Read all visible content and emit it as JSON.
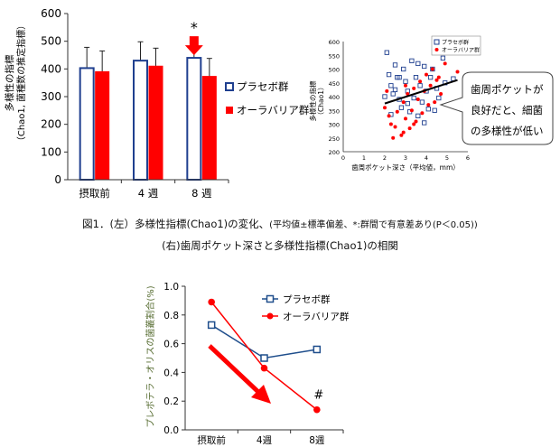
{
  "chart_data": [
    {
      "type": "bar",
      "title": "",
      "ylabel": "多様性の指標",
      "ylabel_sub": "（Chao1, 菌種数の推定指標）",
      "categories": [
        "摂取前",
        "4 週",
        "8 週"
      ],
      "yticks": [
        0,
        100,
        200,
        300,
        400,
        500,
        600
      ],
      "ylim": [
        0,
        600
      ],
      "series": [
        {
          "name": "プラセボ群",
          "values": [
            403,
            430,
            440
          ],
          "errors": [
            75,
            68,
            60
          ],
          "color": "#1f3f8f",
          "fill": "#ffffff"
        },
        {
          "name": "オーラバリア群",
          "values": [
            390,
            410,
            373
          ],
          "errors": [
            75,
            65,
            65
          ],
          "color": "#ff0000",
          "fill": "#ff0000"
        }
      ],
      "annotation": {
        "text": "*",
        "category_index": 2,
        "arrow": "down",
        "arrow_color": "#ff0000"
      }
    },
    {
      "type": "scatter",
      "xlabel": "歯周ポケット深さ（平均値，mm）",
      "ylabel": "多様性の指標",
      "ylabel_sub": "（Chao1）",
      "xlim": [
        0,
        6
      ],
      "ylim": [
        200,
        600
      ],
      "xticks": [
        0,
        1,
        2,
        3,
        4,
        5,
        6
      ],
      "yticks": [
        200,
        250,
        300,
        350,
        400,
        450,
        500,
        550,
        600
      ],
      "legend": [
        "プラセボ群",
        "オーラバリア群"
      ],
      "placebo_color": "#1f3f8f",
      "aura_color": "#ff0000",
      "placebo": [
        [
          2.1,
          560
        ],
        [
          2.2,
          480
        ],
        [
          2.3,
          440
        ],
        [
          2.4,
          410
        ],
        [
          2.5,
          515
        ],
        [
          2.6,
          470
        ],
        [
          2.7,
          390
        ],
        [
          2.8,
          360
        ],
        [
          2.9,
          500
        ],
        [
          3.0,
          455
        ],
        [
          3.1,
          420
        ],
        [
          3.2,
          345
        ],
        [
          3.3,
          530
        ],
        [
          3.4,
          395
        ],
        [
          3.5,
          470
        ],
        [
          3.6,
          330
        ],
        [
          3.7,
          440
        ],
        [
          3.8,
          380
        ],
        [
          3.9,
          510
        ],
        [
          4.0,
          420
        ],
        [
          4.1,
          355
        ],
        [
          4.2,
          470
        ],
        [
          4.3,
          500
        ],
        [
          4.5,
          430
        ],
        [
          4.6,
          395
        ],
        [
          4.8,
          540
        ],
        [
          2.0,
          400
        ],
        [
          2.3,
          335
        ],
        [
          2.7,
          470
        ],
        [
          3.1,
          375
        ],
        [
          3.6,
          520
        ],
        [
          4.4,
          350
        ],
        [
          2.5,
          425
        ],
        [
          3.9,
          305
        ],
        [
          5.3,
          465
        ],
        [
          4.9,
          450
        ]
      ],
      "aura": [
        [
          2.0,
          360
        ],
        [
          2.2,
          330
        ],
        [
          2.3,
          300
        ],
        [
          2.5,
          290
        ],
        [
          2.6,
          345
        ],
        [
          2.8,
          260
        ],
        [
          2.9,
          380
        ],
        [
          3.0,
          320
        ],
        [
          3.1,
          410
        ],
        [
          3.2,
          285
        ],
        [
          3.3,
          350
        ],
        [
          3.4,
          430
        ],
        [
          3.5,
          310
        ],
        [
          3.6,
          390
        ],
        [
          3.7,
          455
        ],
        [
          3.8,
          340
        ],
        [
          3.9,
          420
        ],
        [
          4.0,
          480
        ],
        [
          4.1,
          370
        ],
        [
          4.2,
          440
        ],
        [
          4.3,
          500
        ],
        [
          4.5,
          460
        ],
        [
          4.7,
          410
        ],
        [
          4.9,
          520
        ],
        [
          2.4,
          250
        ],
        [
          2.9,
          270
        ],
        [
          3.4,
          300
        ],
        [
          4.4,
          380
        ],
        [
          3.0,
          440
        ],
        [
          4.6,
          470
        ],
        [
          5.5,
          490
        ],
        [
          2.1,
          420
        ]
      ],
      "trend": [
        [
          2.0,
          375
        ],
        [
          5.5,
          460
        ]
      ],
      "callout": [
        "歯周ポケットが",
        "良好だと、細菌",
        "の多様性が低い"
      ]
    },
    {
      "type": "line",
      "ylabel": "プレボテラ・オリスの菌叢割合(%)",
      "categories": [
        "摂取前",
        "4週",
        "8週"
      ],
      "yticks": [
        "0.0",
        "0.2",
        "0.4",
        "0.6",
        "0.8",
        "1.0"
      ],
      "ylim": [
        0,
        1
      ],
      "series": [
        {
          "name": "プラセボ群",
          "values": [
            0.73,
            0.5,
            0.56
          ],
          "color": "#1f4e8c",
          "marker": "square"
        },
        {
          "name": "オーラバリア群",
          "values": [
            0.89,
            0.43,
            0.14
          ],
          "color": "#ff0000",
          "marker": "circle"
        }
      ],
      "annotation": {
        "text": "#",
        "category_index": 2
      }
    }
  ],
  "caption": {
    "line1_main": "図1．(左）多様性指標(Chao1)の変化、",
    "line1_note": "(平均値±標準偏差、*:群間で有意差あり(P＜0.05))",
    "line2": "(右)歯周ポケット深さと多様性指標(Chao1)の相関"
  }
}
